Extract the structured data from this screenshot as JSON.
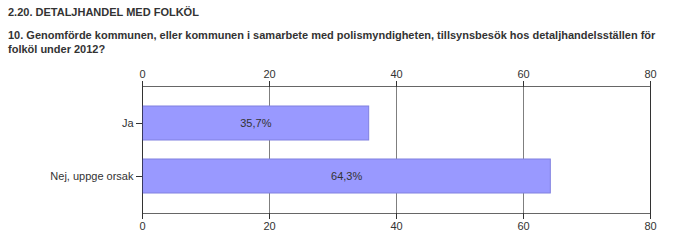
{
  "chart_data": {
    "type": "bar",
    "orientation": "horizontal",
    "title": "2.20. DETALJHANDEL MED FOLKÖL",
    "subtitle": "10. Genomförde kommunen, eller kommunen i samarbete med polismyndigheten, tillsynsbesök hos detaljhandelsställen för folköl under 2012?",
    "categories": [
      "Ja",
      "Nej, uppge orsak"
    ],
    "values": [
      35.7,
      64.3
    ],
    "value_labels": [
      "35,7%",
      "64,3%"
    ],
    "data_labels": true,
    "color": "#9999ff",
    "xlim": [
      0,
      80
    ],
    "xticks": [
      0,
      20,
      40,
      60,
      80
    ],
    "grid": true
  }
}
